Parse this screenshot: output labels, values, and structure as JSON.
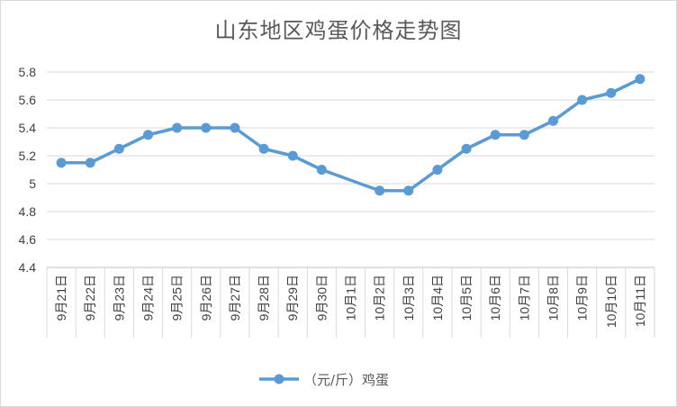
{
  "chart_data": {
    "type": "line",
    "title": "山东地区鸡蛋价格走势图",
    "xlabel": "",
    "ylabel": "",
    "categories": [
      "9月21日",
      "9月22日",
      "9月23日",
      "9月24日",
      "9月25日",
      "9月26日",
      "9月27日",
      "9月28日",
      "9月29日",
      "9月30日",
      "10月1日",
      "10月2日",
      "10月3日",
      "10月4日",
      "10月5日",
      "10月6日",
      "10月7日",
      "10月8日",
      "10月9日",
      "10月10日",
      "10月11日"
    ],
    "series": [
      {
        "name": "（元/斤）鸡蛋",
        "values": [
          5.15,
          5.15,
          5.25,
          5.35,
          5.4,
          5.4,
          5.4,
          5.25,
          5.2,
          5.1,
          null,
          4.95,
          4.95,
          5.1,
          5.25,
          5.35,
          5.35,
          5.45,
          5.6,
          5.65,
          5.75
        ],
        "color": "#5b9bd5"
      }
    ],
    "ylim": [
      4.4,
      5.8
    ],
    "yticks": [
      4.4,
      4.6,
      4.8,
      5,
      5.2,
      5.4,
      5.6,
      5.8
    ],
    "grid": true,
    "legend": "bottom",
    "gap_handling": "connect"
  }
}
